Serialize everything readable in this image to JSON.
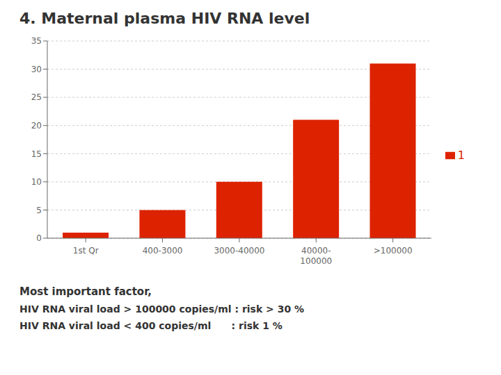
{
  "chart_data": {
    "type": "bar",
    "title": "4. Maternal plasma HIV RNA level",
    "categories": [
      "1st Qr",
      "400-3000",
      "3000-40000",
      "40000-\n100000",
      ">100000"
    ],
    "series": [
      {
        "name": "1",
        "color": "#DD2200",
        "values": [
          1,
          5,
          10,
          21,
          31
        ]
      }
    ],
    "ylim": [
      0,
      35
    ],
    "yticks": [
      0,
      5,
      10,
      15,
      20,
      25,
      30,
      35
    ],
    "grid": true,
    "legend": "right",
    "annotations": [
      "Most important factor,",
      "HIV RNA viral load > 100000 copies/ml : risk > 30 %",
      "HIV RNA viral load < 400 copies/ml      : risk 1 %"
    ]
  }
}
